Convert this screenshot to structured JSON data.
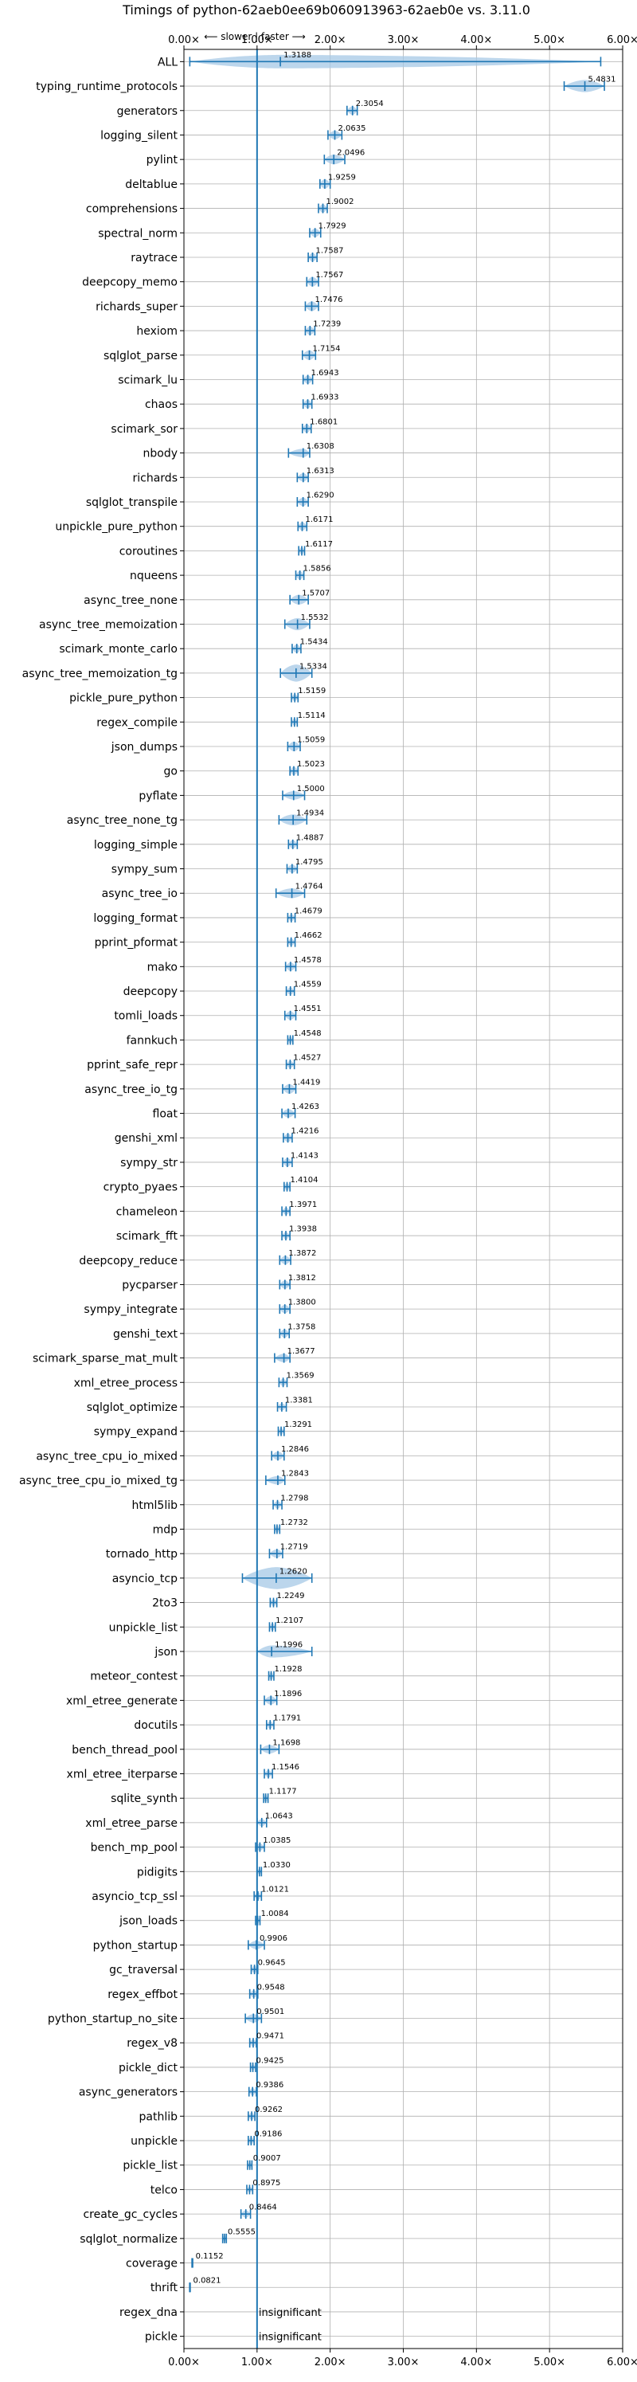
{
  "chart_data": {
    "type": "violin",
    "title": "Timings of python-62aeb0ee69b060913963-62aeb0e vs. 3.11.0",
    "subtitle": "⟵ slower | faster ⟶",
    "xlim": [
      0,
      6
    ],
    "x_ticks": [
      0,
      1,
      2,
      3,
      4,
      5,
      6
    ],
    "x_tick_labels": [
      "0.00×",
      "1.00×",
      "2.00×",
      "3.00×",
      "4.00×",
      "5.00×",
      "6.00×"
    ],
    "reference_line": 1.0,
    "grid": true,
    "colors": {
      "violin": "#a6c8e6",
      "line": "#1f77b4",
      "mean_marker": "#d62728"
    },
    "benchmarks": [
      {
        "name": "ALL",
        "value": 1.3188,
        "label": "1.3188",
        "lo": 0.08,
        "hi": 5.7,
        "w": 0.55
      },
      {
        "name": "typing_runtime_protocols",
        "value": 5.4831,
        "label": "5.4831",
        "lo": 5.2,
        "hi": 5.75,
        "w": 0.5
      },
      {
        "name": "generators",
        "value": 2.3054,
        "label": "2.3054",
        "lo": 2.23,
        "hi": 2.37,
        "w": 0.35
      },
      {
        "name": "logging_silent",
        "value": 2.0635,
        "label": "2.0635",
        "lo": 1.97,
        "hi": 2.16,
        "w": 0.35
      },
      {
        "name": "pylint",
        "value": 2.0496,
        "label": "2.0496",
        "lo": 1.92,
        "hi": 2.2,
        "w": 0.4
      },
      {
        "name": "deltablue",
        "value": 1.9259,
        "label": "1.9259",
        "lo": 1.86,
        "hi": 2.0,
        "w": 0.4
      },
      {
        "name": "comprehensions",
        "value": 1.9002,
        "label": "1.9002",
        "lo": 1.84,
        "hi": 1.96,
        "w": 0.35
      },
      {
        "name": "spectral_norm",
        "value": 1.7929,
        "label": "1.7929",
        "lo": 1.72,
        "hi": 1.87,
        "w": 0.35
      },
      {
        "name": "raytrace",
        "value": 1.7587,
        "label": "1.7587",
        "lo": 1.7,
        "hi": 1.82,
        "w": 0.35
      },
      {
        "name": "deepcopy_memo",
        "value": 1.7567,
        "label": "1.7567",
        "lo": 1.68,
        "hi": 1.84,
        "w": 0.4
      },
      {
        "name": "richards_super",
        "value": 1.7476,
        "label": "1.7476",
        "lo": 1.66,
        "hi": 1.84,
        "w": 0.4
      },
      {
        "name": "hexiom",
        "value": 1.7239,
        "label": "1.7239",
        "lo": 1.66,
        "hi": 1.79,
        "w": 0.35
      },
      {
        "name": "sqlglot_parse",
        "value": 1.7154,
        "label": "1.7154",
        "lo": 1.62,
        "hi": 1.8,
        "w": 0.4
      },
      {
        "name": "scimark_lu",
        "value": 1.6943,
        "label": "1.6943",
        "lo": 1.63,
        "hi": 1.76,
        "w": 0.35
      },
      {
        "name": "chaos",
        "value": 1.6933,
        "label": "1.6933",
        "lo": 1.63,
        "hi": 1.75,
        "w": 0.35
      },
      {
        "name": "scimark_sor",
        "value": 1.6801,
        "label": "1.6801",
        "lo": 1.62,
        "hi": 1.74,
        "w": 0.35
      },
      {
        "name": "nbody",
        "value": 1.6308,
        "label": "1.6308",
        "lo": 1.43,
        "hi": 1.72,
        "w": 0.35
      },
      {
        "name": "richards",
        "value": 1.6313,
        "label": "1.6313",
        "lo": 1.55,
        "hi": 1.7,
        "w": 0.35
      },
      {
        "name": "sqlglot_transpile",
        "value": 1.629,
        "label": "1.6290",
        "lo": 1.55,
        "hi": 1.7,
        "w": 0.35
      },
      {
        "name": "unpickle_pure_python",
        "value": 1.6171,
        "label": "1.6171",
        "lo": 1.56,
        "hi": 1.68,
        "w": 0.35
      },
      {
        "name": "coroutines",
        "value": 1.6117,
        "label": "1.6117",
        "lo": 1.57,
        "hi": 1.65,
        "w": 0.3
      },
      {
        "name": "nqueens",
        "value": 1.5856,
        "label": "1.5856",
        "lo": 1.53,
        "hi": 1.64,
        "w": 0.35
      },
      {
        "name": "async_tree_none",
        "value": 1.5707,
        "label": "1.5707",
        "lo": 1.45,
        "hi": 1.7,
        "w": 0.4
      },
      {
        "name": "async_tree_memoization",
        "value": 1.5532,
        "label": "1.5532",
        "lo": 1.38,
        "hi": 1.72,
        "w": 0.5
      },
      {
        "name": "scimark_monte_carlo",
        "value": 1.5434,
        "label": "1.5434",
        "lo": 1.48,
        "hi": 1.6,
        "w": 0.35
      },
      {
        "name": "async_tree_memoization_tg",
        "value": 1.5334,
        "label": "1.5334",
        "lo": 1.32,
        "hi": 1.75,
        "w": 0.7
      },
      {
        "name": "pickle_pure_python",
        "value": 1.5159,
        "label": "1.5159",
        "lo": 1.47,
        "hi": 1.56,
        "w": 0.3
      },
      {
        "name": "regex_compile",
        "value": 1.5114,
        "label": "1.5114",
        "lo": 1.47,
        "hi": 1.55,
        "w": 0.3
      },
      {
        "name": "json_dumps",
        "value": 1.5059,
        "label": "1.5059",
        "lo": 1.42,
        "hi": 1.59,
        "w": 0.4
      },
      {
        "name": "go",
        "value": 1.5023,
        "label": "1.5023",
        "lo": 1.45,
        "hi": 1.56,
        "w": 0.35
      },
      {
        "name": "pyflate",
        "value": 1.5,
        "label": "1.5000",
        "lo": 1.35,
        "hi": 1.65,
        "w": 0.35
      },
      {
        "name": "async_tree_none_tg",
        "value": 1.4934,
        "label": "1.4934",
        "lo": 1.3,
        "hi": 1.68,
        "w": 0.45
      },
      {
        "name": "logging_simple",
        "value": 1.4887,
        "label": "1.4887",
        "lo": 1.43,
        "hi": 1.55,
        "w": 0.35
      },
      {
        "name": "sympy_sum",
        "value": 1.4795,
        "label": "1.4795",
        "lo": 1.41,
        "hi": 1.55,
        "w": 0.35
      },
      {
        "name": "async_tree_io",
        "value": 1.4764,
        "label": "1.4764",
        "lo": 1.26,
        "hi": 1.65,
        "w": 0.4
      },
      {
        "name": "logging_format",
        "value": 1.4679,
        "label": "1.4679",
        "lo": 1.42,
        "hi": 1.52,
        "w": 0.3
      },
      {
        "name": "pprint_pformat",
        "value": 1.4662,
        "label": "1.4662",
        "lo": 1.42,
        "hi": 1.52,
        "w": 0.3
      },
      {
        "name": "mako",
        "value": 1.4578,
        "label": "1.4578",
        "lo": 1.39,
        "hi": 1.53,
        "w": 0.35
      },
      {
        "name": "deepcopy",
        "value": 1.4559,
        "label": "1.4559",
        "lo": 1.4,
        "hi": 1.51,
        "w": 0.3
      },
      {
        "name": "tomli_loads",
        "value": 1.4551,
        "label": "1.4551",
        "lo": 1.38,
        "hi": 1.53,
        "w": 0.35
      },
      {
        "name": "fannkuch",
        "value": 1.4548,
        "label": "1.4548",
        "lo": 1.42,
        "hi": 1.49,
        "w": 0.3
      },
      {
        "name": "pprint_safe_repr",
        "value": 1.4527,
        "label": "1.4527",
        "lo": 1.4,
        "hi": 1.51,
        "w": 0.3
      },
      {
        "name": "async_tree_io_tg",
        "value": 1.4419,
        "label": "1.4419",
        "lo": 1.35,
        "hi": 1.53,
        "w": 0.4
      },
      {
        "name": "float",
        "value": 1.4263,
        "label": "1.4263",
        "lo": 1.34,
        "hi": 1.52,
        "w": 0.35
      },
      {
        "name": "genshi_xml",
        "value": 1.4216,
        "label": "1.4216",
        "lo": 1.36,
        "hi": 1.48,
        "w": 0.35
      },
      {
        "name": "sympy_str",
        "value": 1.4143,
        "label": "1.4143",
        "lo": 1.35,
        "hi": 1.48,
        "w": 0.35
      },
      {
        "name": "crypto_pyaes",
        "value": 1.4104,
        "label": "1.4104",
        "lo": 1.37,
        "hi": 1.45,
        "w": 0.3
      },
      {
        "name": "chameleon",
        "value": 1.3971,
        "label": "1.3971",
        "lo": 1.34,
        "hi": 1.45,
        "w": 0.3
      },
      {
        "name": "scimark_fft",
        "value": 1.3938,
        "label": "1.3938",
        "lo": 1.34,
        "hi": 1.45,
        "w": 0.3
      },
      {
        "name": "deepcopy_reduce",
        "value": 1.3872,
        "label": "1.3872",
        "lo": 1.31,
        "hi": 1.46,
        "w": 0.35
      },
      {
        "name": "pycparser",
        "value": 1.3812,
        "label": "1.3812",
        "lo": 1.31,
        "hi": 1.45,
        "w": 0.35
      },
      {
        "name": "sympy_integrate",
        "value": 1.38,
        "label": "1.3800",
        "lo": 1.31,
        "hi": 1.45,
        "w": 0.35
      },
      {
        "name": "genshi_text",
        "value": 1.3758,
        "label": "1.3758",
        "lo": 1.31,
        "hi": 1.44,
        "w": 0.35
      },
      {
        "name": "scimark_sparse_mat_mult",
        "value": 1.3677,
        "label": "1.3677",
        "lo": 1.24,
        "hi": 1.45,
        "w": 0.35
      },
      {
        "name": "xml_etree_process",
        "value": 1.3569,
        "label": "1.3569",
        "lo": 1.3,
        "hi": 1.41,
        "w": 0.3
      },
      {
        "name": "sqlglot_optimize",
        "value": 1.3381,
        "label": "1.3381",
        "lo": 1.28,
        "hi": 1.4,
        "w": 0.3
      },
      {
        "name": "sympy_expand",
        "value": 1.3291,
        "label": "1.3291",
        "lo": 1.29,
        "hi": 1.37,
        "w": 0.3
      },
      {
        "name": "async_tree_cpu_io_mixed",
        "value": 1.2846,
        "label": "1.2846",
        "lo": 1.2,
        "hi": 1.37,
        "w": 0.35
      },
      {
        "name": "async_tree_cpu_io_mixed_tg",
        "value": 1.2843,
        "label": "1.2843",
        "lo": 1.12,
        "hi": 1.38,
        "w": 0.35
      },
      {
        "name": "html5lib",
        "value": 1.2798,
        "label": "1.2798",
        "lo": 1.22,
        "hi": 1.34,
        "w": 0.3
      },
      {
        "name": "mdp",
        "value": 1.2732,
        "label": "1.2732",
        "lo": 1.24,
        "hi": 1.31,
        "w": 0.3
      },
      {
        "name": "tornado_http",
        "value": 1.2719,
        "label": "1.2719",
        "lo": 1.17,
        "hi": 1.35,
        "w": 0.35
      },
      {
        "name": "asyncio_tcp",
        "value": 1.262,
        "label": "1.2620",
        "lo": 0.8,
        "hi": 1.75,
        "w": 0.9
      },
      {
        "name": "2to3",
        "value": 1.2249,
        "label": "1.2249",
        "lo": 1.18,
        "hi": 1.27,
        "w": 0.3
      },
      {
        "name": "unpickle_list",
        "value": 1.2107,
        "label": "1.2107",
        "lo": 1.17,
        "hi": 1.25,
        "w": 0.3
      },
      {
        "name": "json",
        "value": 1.1996,
        "label": "1.1996",
        "lo": 1.0,
        "hi": 1.75,
        "w": 0.5
      },
      {
        "name": "meteor_contest",
        "value": 1.1928,
        "label": "1.1928",
        "lo": 1.16,
        "hi": 1.23,
        "w": 0.3
      },
      {
        "name": "xml_etree_generate",
        "value": 1.1896,
        "label": "1.1896",
        "lo": 1.1,
        "hi": 1.27,
        "w": 0.35
      },
      {
        "name": "docutils",
        "value": 1.1791,
        "label": "1.1791",
        "lo": 1.13,
        "hi": 1.23,
        "w": 0.3
      },
      {
        "name": "bench_thread_pool",
        "value": 1.1698,
        "label": "1.1698",
        "lo": 1.05,
        "hi": 1.3,
        "w": 0.35
      },
      {
        "name": "xml_etree_iterparse",
        "value": 1.1546,
        "label": "1.1546",
        "lo": 1.1,
        "hi": 1.21,
        "w": 0.3
      },
      {
        "name": "sqlite_synth",
        "value": 1.1177,
        "label": "1.1177",
        "lo": 1.09,
        "hi": 1.15,
        "w": 0.3
      },
      {
        "name": "xml_etree_parse",
        "value": 1.0643,
        "label": "1.0643",
        "lo": 1.0,
        "hi": 1.13,
        "w": 0.3
      },
      {
        "name": "bench_mp_pool",
        "value": 1.0385,
        "label": "1.0385",
        "lo": 0.98,
        "hi": 1.1,
        "w": 0.3
      },
      {
        "name": "pidigits",
        "value": 1.033,
        "label": "1.0330",
        "lo": 1.0,
        "hi": 1.06,
        "w": 0.25
      },
      {
        "name": "asyncio_tcp_ssl",
        "value": 1.0121,
        "label": "1.0121",
        "lo": 0.96,
        "hi": 1.06,
        "w": 0.3
      },
      {
        "name": "json_loads",
        "value": 1.0084,
        "label": "1.0084",
        "lo": 0.98,
        "hi": 1.04,
        "w": 0.25
      },
      {
        "name": "python_startup",
        "value": 0.9906,
        "label": "0.9906",
        "lo": 0.88,
        "hi": 1.1,
        "w": 0.35
      },
      {
        "name": "gc_traversal",
        "value": 0.9645,
        "label": "0.9645",
        "lo": 0.92,
        "hi": 1.01,
        "w": 0.3
      },
      {
        "name": "regex_effbot",
        "value": 0.9548,
        "label": "0.9548",
        "lo": 0.9,
        "hi": 1.01,
        "w": 0.3
      },
      {
        "name": "python_startup_no_site",
        "value": 0.9501,
        "label": "0.9501",
        "lo": 0.84,
        "hi": 1.06,
        "w": 0.35
      },
      {
        "name": "regex_v8",
        "value": 0.9471,
        "label": "0.9471",
        "lo": 0.9,
        "hi": 0.99,
        "w": 0.3
      },
      {
        "name": "pickle_dict",
        "value": 0.9425,
        "label": "0.9425",
        "lo": 0.91,
        "hi": 0.98,
        "w": 0.25
      },
      {
        "name": "async_generators",
        "value": 0.9386,
        "label": "0.9386",
        "lo": 0.89,
        "hi": 0.99,
        "w": 0.3
      },
      {
        "name": "pathlib",
        "value": 0.9262,
        "label": "0.9262",
        "lo": 0.88,
        "hi": 0.97,
        "w": 0.3
      },
      {
        "name": "unpickle",
        "value": 0.9186,
        "label": "0.9186",
        "lo": 0.88,
        "hi": 0.96,
        "w": 0.3
      },
      {
        "name": "pickle_list",
        "value": 0.9007,
        "label": "0.9007",
        "lo": 0.87,
        "hi": 0.93,
        "w": 0.25
      },
      {
        "name": "telco",
        "value": 0.8975,
        "label": "0.8975",
        "lo": 0.86,
        "hi": 0.94,
        "w": 0.25
      },
      {
        "name": "create_gc_cycles",
        "value": 0.8464,
        "label": "0.8464",
        "lo": 0.78,
        "hi": 0.91,
        "w": 0.3
      },
      {
        "name": "sqlglot_normalize",
        "value": 0.5555,
        "label": "0.5555",
        "lo": 0.53,
        "hi": 0.58,
        "w": 0.25
      },
      {
        "name": "coverage",
        "value": 0.1152,
        "label": "0.1152",
        "lo": 0.11,
        "hi": 0.12,
        "w": 0.2
      },
      {
        "name": "thrift",
        "value": 0.0821,
        "label": "0.0821",
        "lo": 0.078,
        "hi": 0.086,
        "w": 0.2
      },
      {
        "name": "regex_dna",
        "value": null,
        "label": "insignificant"
      },
      {
        "name": "pickle",
        "value": null,
        "label": "insignificant"
      }
    ]
  }
}
